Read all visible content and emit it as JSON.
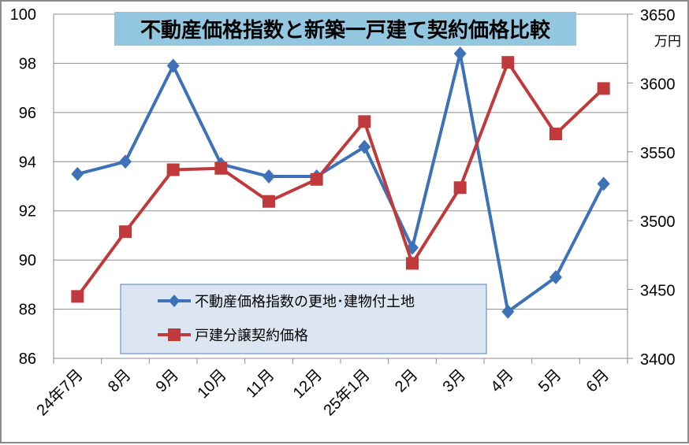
{
  "chart_data": {
    "type": "line",
    "title": "不動産価格指数と新築一戸建て契約価格比較",
    "categories": [
      "24年7月",
      "8月",
      "9月",
      "10月",
      "11月",
      "12月",
      "25年1月",
      "2月",
      "3月",
      "4月",
      "5月",
      "6月"
    ],
    "y_left": {
      "range": [
        86,
        100
      ],
      "ticks": [
        86,
        88,
        90,
        92,
        94,
        96,
        98,
        100
      ]
    },
    "y_right": {
      "range": [
        3400,
        3650
      ],
      "ticks": [
        3400,
        3450,
        3500,
        3550,
        3600,
        3650
      ],
      "unit": "万円"
    },
    "grid": true,
    "legend_position": "bottom-center",
    "series": [
      {
        "name": "不動産価格指数の更地･建物付土地",
        "axis": "left",
        "color": "#3d72b8",
        "marker": "diamond",
        "values": [
          93.5,
          94.0,
          97.9,
          93.9,
          93.4,
          93.4,
          94.6,
          90.5,
          98.4,
          87.9,
          89.3,
          93.1
        ]
      },
      {
        "name": "戸建分譲契約価格",
        "axis": "right",
        "color": "#c0393b",
        "marker": "square",
        "values": [
          3445,
          3492,
          3537,
          3538,
          3514,
          3530,
          3572,
          3469,
          3524,
          3615,
          3563,
          3596
        ]
      }
    ]
  }
}
